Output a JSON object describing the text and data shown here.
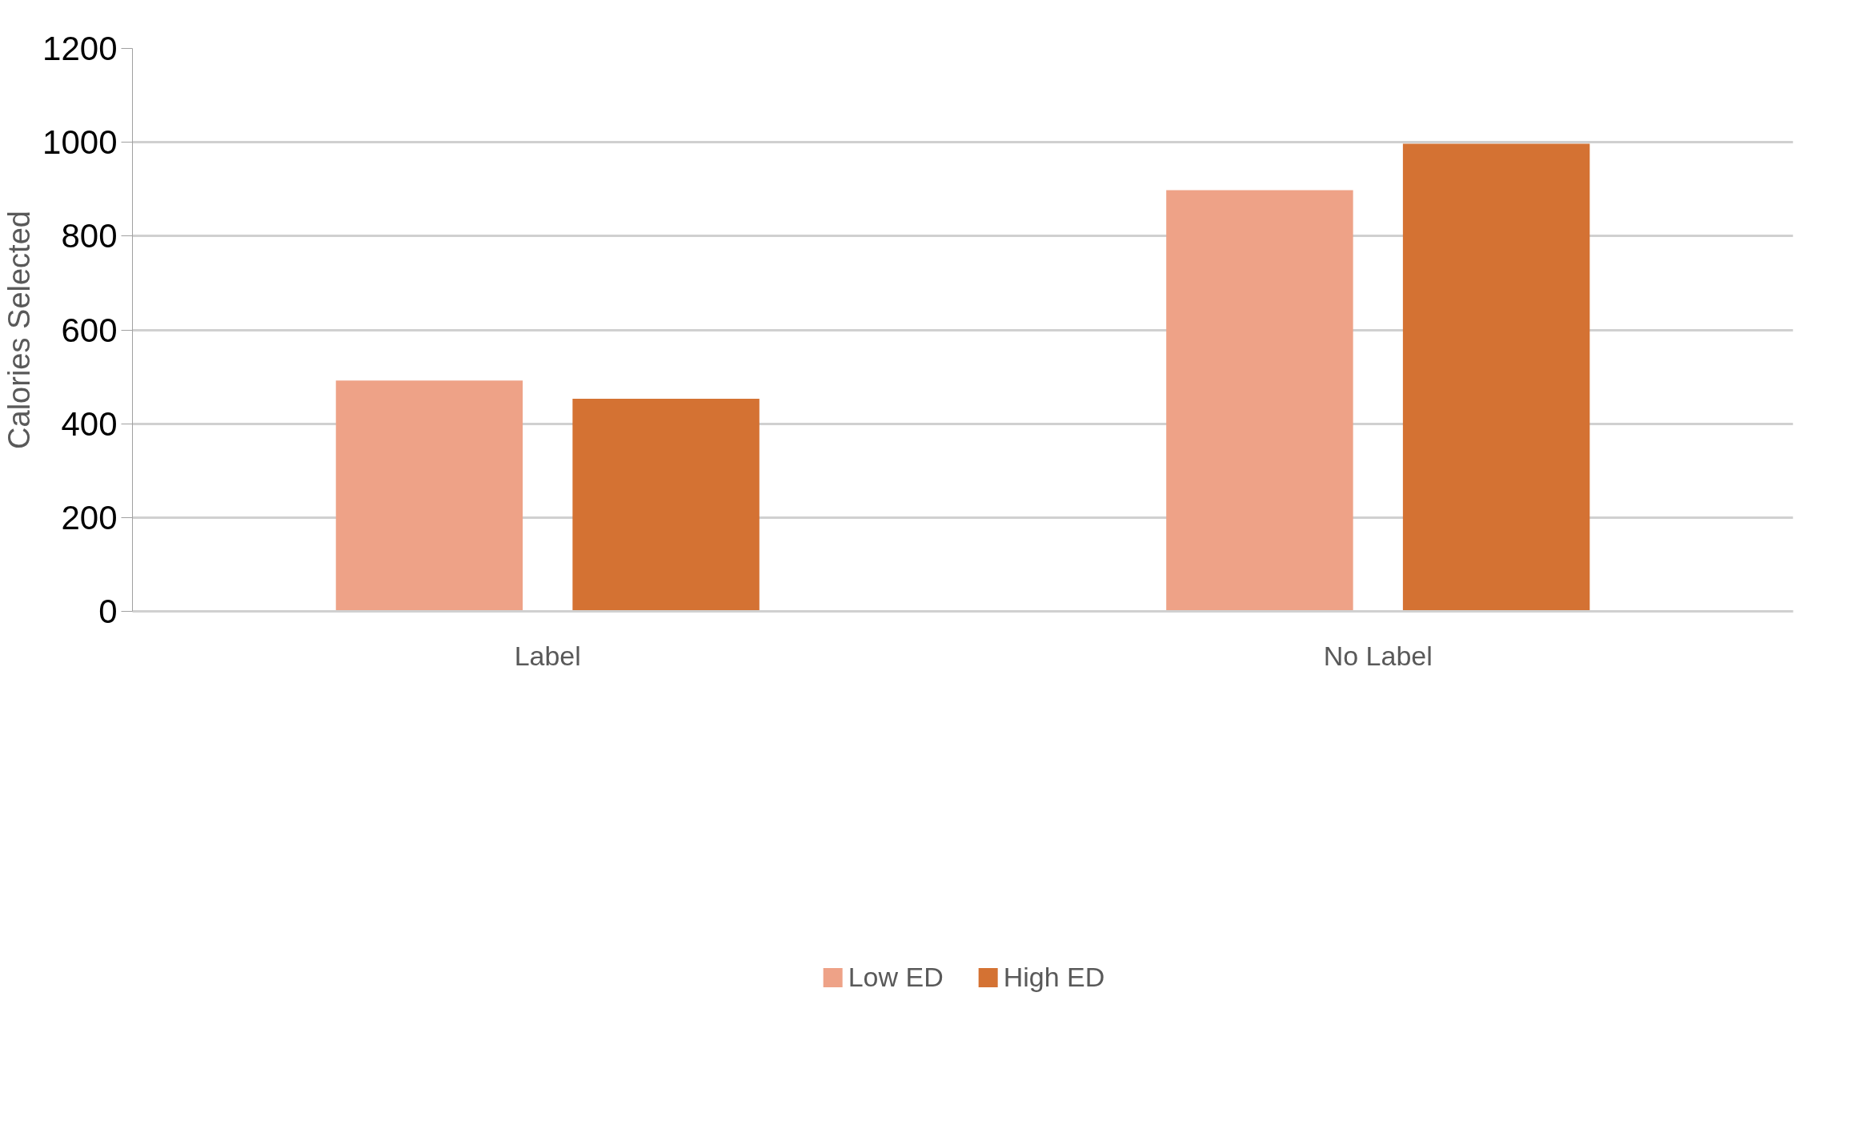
{
  "chart_data": {
    "type": "bar",
    "ylabel": "Calories Selected",
    "categories": [
      "Label",
      "No Label"
    ],
    "series": [
      {
        "name": "Low ED",
        "color": "#eea287",
        "values": [
          492,
          898
        ]
      },
      {
        "name": "High ED",
        "color": "#d47233",
        "values": [
          453,
          997
        ]
      }
    ],
    "ylim": [
      0,
      1200
    ],
    "yticks": [
      0,
      200,
      400,
      600,
      800,
      1000,
      1200
    ],
    "grid": "y",
    "legend": "bottom"
  }
}
